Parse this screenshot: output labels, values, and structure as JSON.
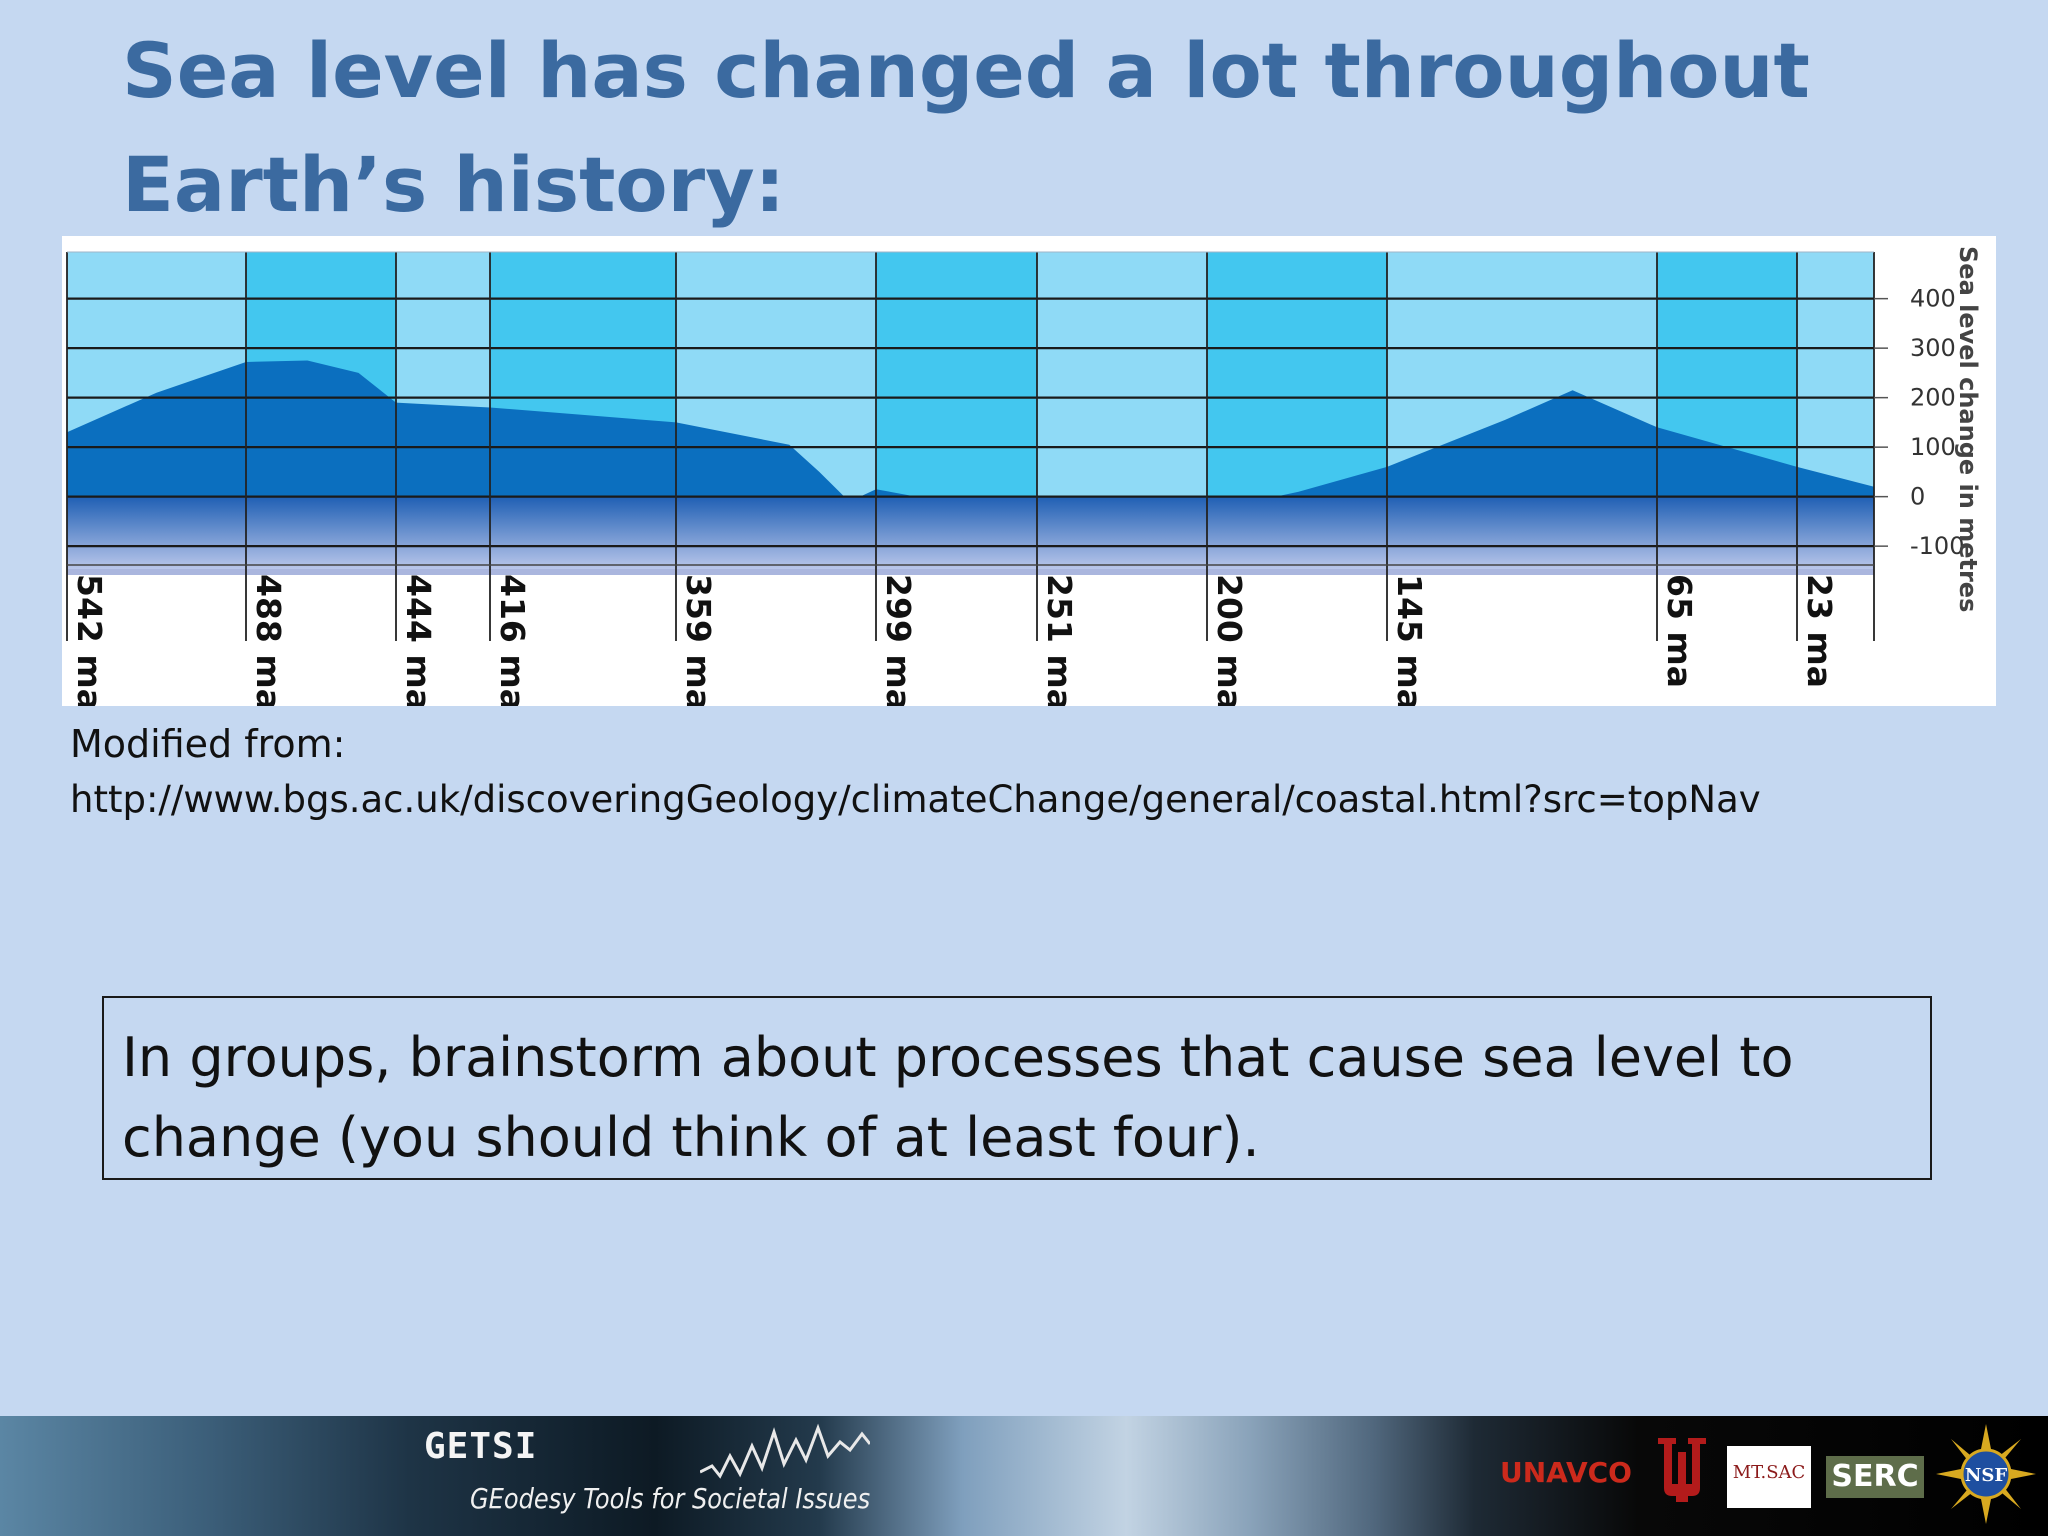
{
  "slide": {
    "title_line1": "Sea level has changed a lot throughout",
    "title_line2": "Earth’s history:",
    "source_label": "Modified from:",
    "source_url": "http://www.bgs.ac.uk/discoveringGeology/climateChange/general/coastal.html?src=topNav",
    "task_line1": "In groups, brainstorm about processes that cause sea level to",
    "task_line2": "change (you should think of at least four)."
  },
  "chart_data": {
    "type": "area",
    "ylabel": "Sea level change in metres",
    "y_ticks": [
      400,
      300,
      200,
      100,
      0,
      -100
    ],
    "ylim": [
      -130,
      470
    ],
    "xlim_ma": [
      542,
      0
    ],
    "x_scale": "period boundaries spaced by geological period, decreasing age to the right",
    "age_boundaries": [
      {
        "ma": 542,
        "label": "542 ma"
      },
      {
        "ma": 488,
        "label": "488 ma"
      },
      {
        "ma": 444,
        "label": "444 ma"
      },
      {
        "ma": 416,
        "label": "416 ma"
      },
      {
        "ma": 359,
        "label": "359 ma"
      },
      {
        "ma": 299,
        "label": "299 ma"
      },
      {
        "ma": 251,
        "label": "251 ma"
      },
      {
        "ma": 200,
        "label": "200 ma"
      },
      {
        "ma": 145,
        "label": "145 ma"
      },
      {
        "ma": 65,
        "label": "65 ma"
      },
      {
        "ma": 23,
        "label": "23 ma"
      },
      {
        "ma": 0,
        "label": ""
      }
    ],
    "series": [
      {
        "points": [
          {
            "ma": 542,
            "y": 130
          },
          {
            "ma": 515,
            "y": 210
          },
          {
            "ma": 488,
            "y": 272
          },
          {
            "ma": 470,
            "y": 275
          },
          {
            "ma": 455,
            "y": 250
          },
          {
            "ma": 444,
            "y": 190
          },
          {
            "ma": 430,
            "y": 185
          },
          {
            "ma": 416,
            "y": 180
          },
          {
            "ma": 387,
            "y": 165
          },
          {
            "ma": 359,
            "y": 150
          },
          {
            "ma": 325,
            "y": 105
          },
          {
            "ma": 316,
            "y": 50
          },
          {
            "ma": 307,
            "y": -10
          },
          {
            "ma": 299,
            "y": 15
          },
          {
            "ma": 275,
            "y": -15
          },
          {
            "ma": 251,
            "y": -35
          },
          {
            "ma": 225,
            "y": -35
          },
          {
            "ma": 200,
            "y": -30
          },
          {
            "ma": 172,
            "y": 10
          },
          {
            "ma": 145,
            "y": 60
          },
          {
            "ma": 110,
            "y": 155
          },
          {
            "ma": 90,
            "y": 215
          },
          {
            "ma": 65,
            "y": 140
          },
          {
            "ma": 23,
            "y": 60
          },
          {
            "ma": 0,
            "y": 20
          }
        ]
      }
    ],
    "colors": {
      "band_dark": "#43c7ef",
      "band_light": "#8fdaf6",
      "sea_level_area": "#0b6fbf",
      "gridline": "#1a1a1a"
    }
  },
  "footer": {
    "brand": "GETSI",
    "tagline": "GEodesy Tools for Societal Issues",
    "logo_unavco": "UNAVCO",
    "logo_mtsac": "MT.SAC",
    "logo_serc": "SERC",
    "logo_nsf": "NSF"
  }
}
